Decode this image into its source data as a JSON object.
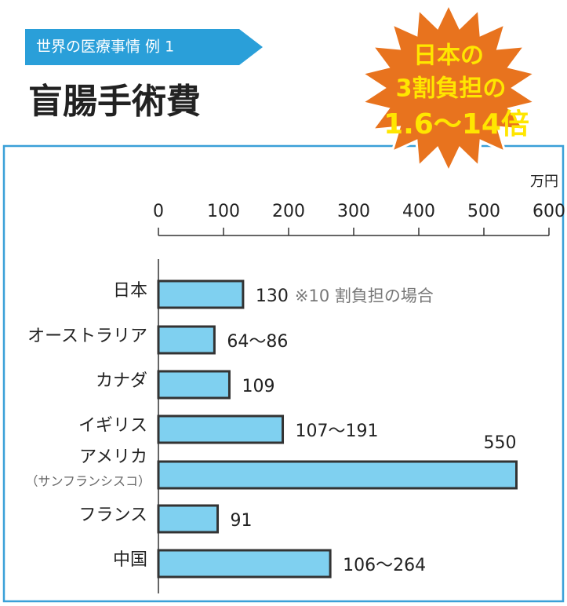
{
  "chart_data": {
    "type": "bar",
    "orientation": "horizontal",
    "tag": "世界の医療事情 例 1",
    "title": "盲腸手術費",
    "badge": [
      "日本の",
      "3割負担の",
      "1.6～14倍"
    ],
    "unit": "万円",
    "categories": [
      "日本",
      "オーストラリア",
      "カナダ",
      "イギリス",
      "アメリカ",
      "フランス",
      "中国"
    ],
    "category_notes": [
      null,
      null,
      null,
      null,
      "（サンフランシスコ）",
      null,
      null
    ],
    "values": [
      130,
      86,
      109,
      191,
      550,
      91,
      264
    ],
    "value_labels": [
      "130",
      "64～86",
      "109",
      "107～191",
      "550",
      "91",
      "106～264"
    ],
    "value_notes": [
      "※10 割負担の場合",
      null,
      null,
      null,
      null,
      null,
      null
    ],
    "color": "#7fd0f0",
    "xlim": [
      0,
      600
    ],
    "xticks": [
      0,
      100,
      200,
      300,
      400,
      500,
      600
    ]
  }
}
